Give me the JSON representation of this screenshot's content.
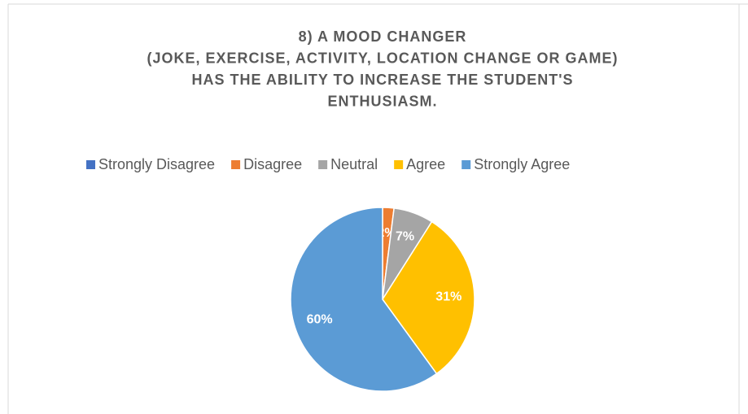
{
  "chart_data": {
    "type": "pie",
    "title": [
      "8) A MOOD CHANGER",
      "(JOKE, EXERCISE, ACTIVITY, LOCATION CHANGE OR GAME)",
      "HAS THE ABILITY TO INCREASE THE STUDENT'S",
      "ENTHUSIASM."
    ],
    "categories": [
      "Strongly Disagree",
      "Disagree",
      "Neutral",
      "Agree",
      "Strongly Agree"
    ],
    "values": [
      0,
      2,
      7,
      31,
      60
    ],
    "value_labels": [
      "0%",
      "2%",
      "7%",
      "31%",
      "60%"
    ],
    "colors": [
      "#4472c4",
      "#ed7d31",
      "#a5a5a5",
      "#ffc000",
      "#5b9bd5"
    ],
    "legend": "top"
  }
}
